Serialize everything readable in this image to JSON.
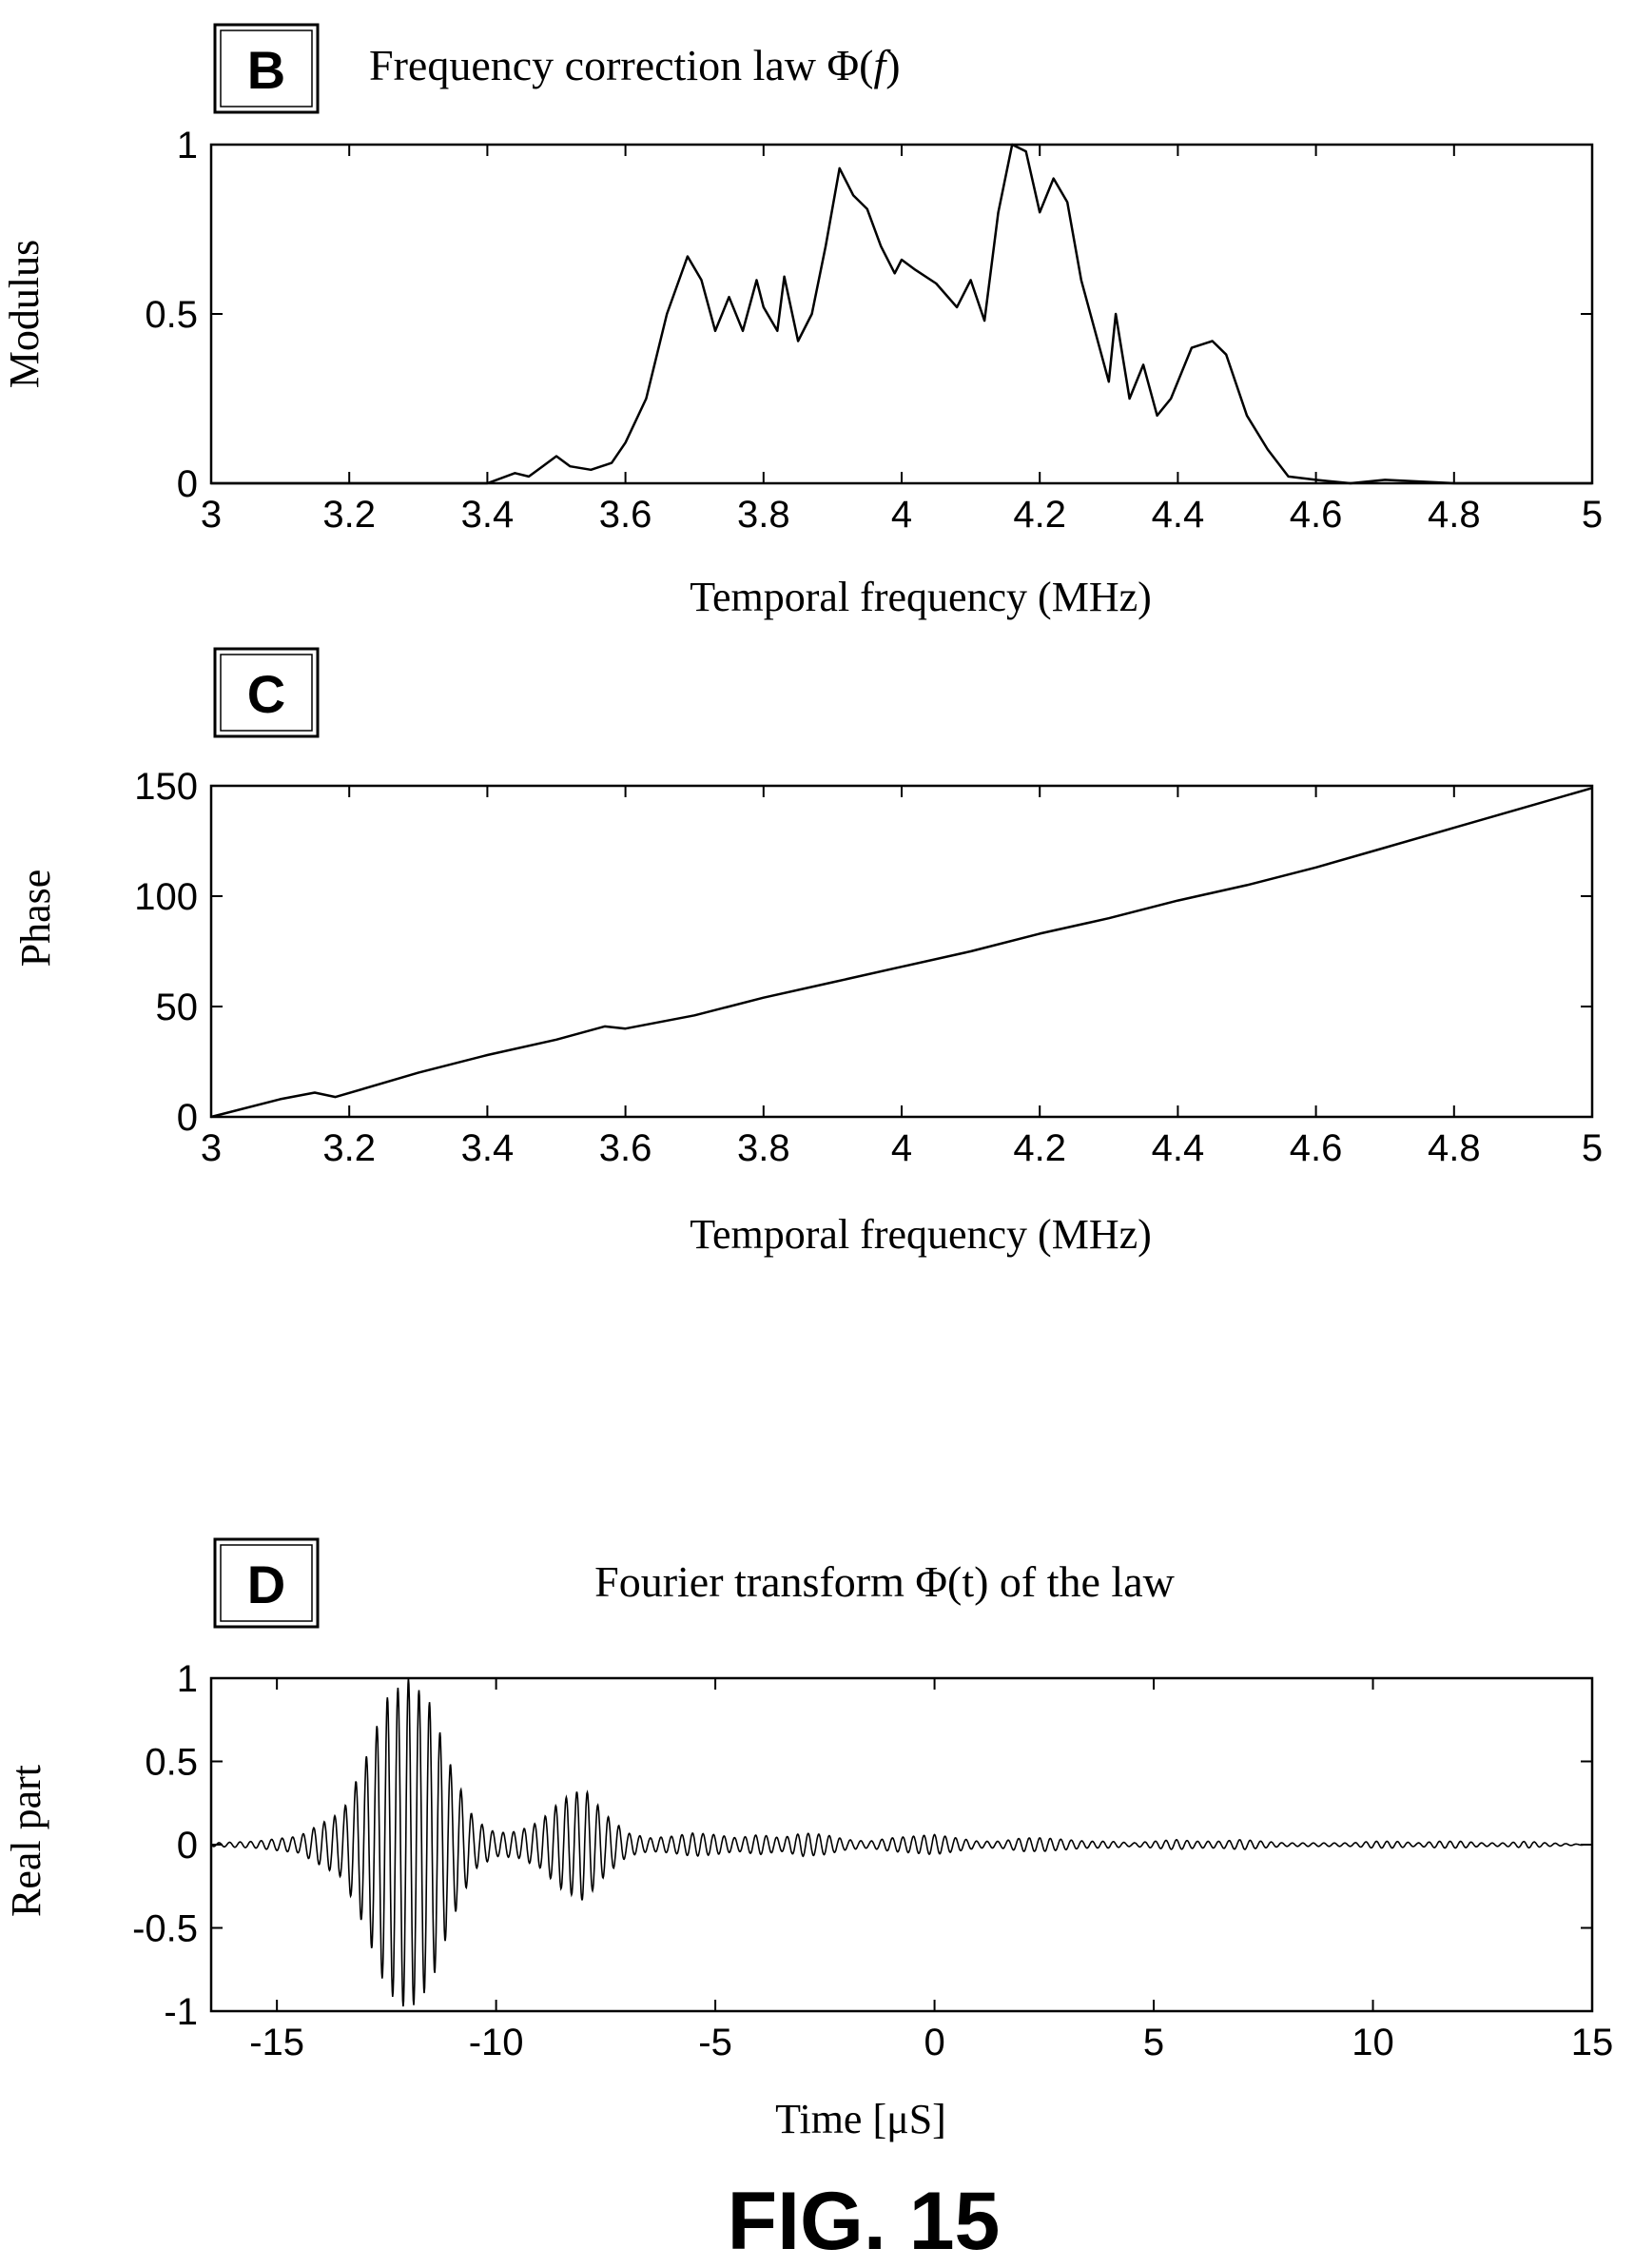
{
  "figure_label": "FIG. 15",
  "chart_data": [
    {
      "id": "B",
      "type": "line",
      "panel_letter": "B",
      "title": "Frequency correction law Φ(f)",
      "title_prefix": "Frequency correction law Φ(",
      "title_var": "f",
      "title_suffix": ")",
      "xlabel": "Temporal frequency (MHz)",
      "ylabel": "Modulus",
      "xlim": [
        3,
        5
      ],
      "ylim": [
        0,
        1
      ],
      "xticks": [
        "3",
        "3.2",
        "3.4",
        "3.6",
        "3.8",
        "4",
        "4.2",
        "4.4",
        "4.6",
        "4.8",
        "5"
      ],
      "yticks": [
        "0",
        "0.5",
        "1"
      ],
      "x": [
        3.0,
        3.2,
        3.4,
        3.44,
        3.46,
        3.48,
        3.5,
        3.52,
        3.55,
        3.58,
        3.6,
        3.63,
        3.66,
        3.69,
        3.71,
        3.73,
        3.75,
        3.77,
        3.79,
        3.8,
        3.82,
        3.83,
        3.85,
        3.87,
        3.89,
        3.91,
        3.93,
        3.95,
        3.97,
        3.99,
        4.0,
        4.02,
        4.05,
        4.08,
        4.1,
        4.12,
        4.14,
        4.16,
        4.18,
        4.2,
        4.22,
        4.24,
        4.26,
        4.28,
        4.3,
        4.31,
        4.33,
        4.35,
        4.37,
        4.39,
        4.42,
        4.45,
        4.47,
        4.5,
        4.53,
        4.56,
        4.6,
        4.65,
        4.7,
        4.8,
        5.0
      ],
      "y": [
        0.0,
        0.0,
        0.0,
        0.03,
        0.02,
        0.05,
        0.08,
        0.05,
        0.04,
        0.06,
        0.12,
        0.25,
        0.5,
        0.67,
        0.6,
        0.45,
        0.55,
        0.45,
        0.6,
        0.52,
        0.45,
        0.61,
        0.42,
        0.5,
        0.7,
        0.93,
        0.85,
        0.81,
        0.7,
        0.62,
        0.66,
        0.63,
        0.59,
        0.52,
        0.6,
        0.48,
        0.8,
        1.0,
        0.98,
        0.8,
        0.9,
        0.83,
        0.6,
        0.45,
        0.3,
        0.5,
        0.25,
        0.35,
        0.2,
        0.25,
        0.4,
        0.42,
        0.38,
        0.2,
        0.1,
        0.02,
        0.01,
        0.0,
        0.01,
        0.0,
        0.0
      ]
    },
    {
      "id": "C",
      "type": "line",
      "panel_letter": "C",
      "title": "",
      "xlabel": "Temporal frequency (MHz)",
      "ylabel": "Phase",
      "xlim": [
        3,
        5
      ],
      "ylim": [
        0,
        150
      ],
      "xticks": [
        "3",
        "3.2",
        "3.4",
        "3.6",
        "3.8",
        "4",
        "4.2",
        "4.4",
        "4.6",
        "4.8",
        "5"
      ],
      "yticks": [
        "0",
        "50",
        "100",
        "150"
      ],
      "x": [
        3.0,
        3.1,
        3.15,
        3.18,
        3.3,
        3.4,
        3.5,
        3.57,
        3.6,
        3.7,
        3.8,
        3.9,
        4.0,
        4.1,
        4.2,
        4.3,
        4.4,
        4.5,
        4.6,
        4.7,
        4.8,
        4.9,
        5.0
      ],
      "y": [
        0,
        8,
        11,
        9,
        20,
        28,
        35,
        41,
        40,
        46,
        54,
        61,
        68,
        75,
        83,
        90,
        98,
        105,
        113,
        122,
        131,
        140,
        149
      ]
    },
    {
      "id": "D",
      "type": "line",
      "panel_letter": "D",
      "title": "Fourier transform Φ(t) of the law",
      "xlabel": "Time [μS]",
      "ylabel": "Real part",
      "xlim": [
        -16.5,
        15
      ],
      "ylim": [
        -1,
        1
      ],
      "xticks": [
        "-15",
        "-10",
        "-5",
        "0",
        "5",
        "10",
        "15"
      ],
      "yticks": [
        "-1",
        "-0.5",
        "0",
        "0.5",
        "1"
      ],
      "envelope_t": [
        -16.5,
        -15.5,
        -14.5,
        -13.5,
        -13.0,
        -12.5,
        -12.0,
        -11.5,
        -11.0,
        -10.5,
        -10.0,
        -9.5,
        -9.0,
        -8.5,
        -8.0,
        -7.5,
        -7.0,
        -6.5,
        -6.0,
        -5.5,
        -5.0,
        -4.5,
        -4.0,
        -3.5,
        -3.0,
        -2.5,
        -2.0,
        -1.5,
        -1.0,
        -0.5,
        0.0,
        0.5,
        1.0,
        1.5,
        2.0,
        2.5,
        3.0,
        3.5,
        4.0,
        4.5,
        5.0,
        5.5,
        6.0,
        6.5,
        7.0,
        7.5,
        8.0,
        8.5,
        9.0,
        9.5,
        10.0,
        10.5,
        11.0,
        11.5,
        12.0,
        12.5,
        13.0,
        13.5,
        14.0,
        15.0
      ],
      "envelope_a": [
        0.01,
        0.02,
        0.05,
        0.2,
        0.5,
        0.88,
        1.0,
        0.85,
        0.45,
        0.15,
        0.07,
        0.08,
        0.14,
        0.27,
        0.34,
        0.18,
        0.07,
        0.04,
        0.05,
        0.07,
        0.06,
        0.04,
        0.06,
        0.04,
        0.07,
        0.06,
        0.03,
        0.02,
        0.04,
        0.05,
        0.06,
        0.04,
        0.02,
        0.02,
        0.04,
        0.04,
        0.03,
        0.02,
        0.02,
        0.01,
        0.02,
        0.03,
        0.02,
        0.02,
        0.03,
        0.02,
        0.01,
        0.01,
        0.01,
        0.01,
        0.02,
        0.02,
        0.01,
        0.02,
        0.02,
        0.01,
        0.01,
        0.02,
        0.01,
        0.0
      ]
    }
  ]
}
